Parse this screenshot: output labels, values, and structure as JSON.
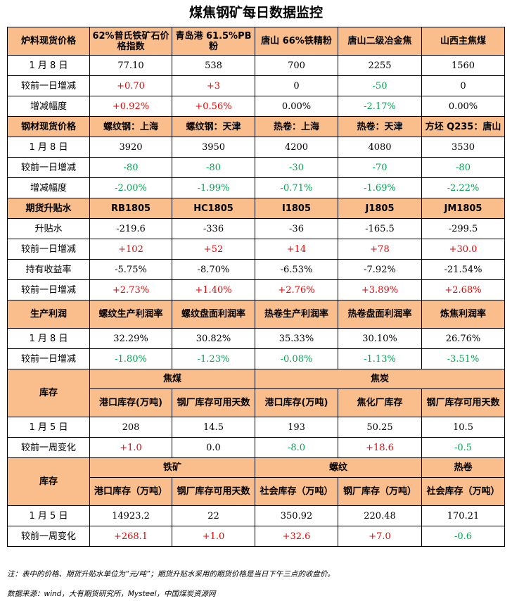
{
  "title": "煤焦钢矿每日数据监控",
  "colors": {
    "header_bg": "#f9be8c",
    "up": "#ee0000",
    "down": "#00a651"
  },
  "raw": {
    "header": [
      "炉料现货价格",
      "62%普氏铁矿石价格指数",
      "青岛港 61.5%PB粉",
      "唐山 66%铁精粉",
      "唐山二级冶金焦",
      "山西主焦煤"
    ],
    "rows": [
      [
        "1 月 8 日",
        "77.10",
        "538",
        "700",
        "2255",
        "1560"
      ],
      [
        "较前一日增减",
        "+0.70",
        "+3",
        "0",
        "-50",
        "0"
      ],
      [
        "增减幅度",
        "+0.92%",
        "+0.56%",
        "0.00%",
        "-2.17%",
        "0.00%"
      ]
    ]
  },
  "steel": {
    "header": [
      "钢材现货价格",
      "螺纹钢：上海",
      "螺纹钢：天津",
      "热卷：上海",
      "热卷：天津",
      "方坯 Q235：唐山"
    ],
    "rows": [
      [
        "1 月 8 日",
        "3920",
        "3950",
        "4200",
        "4080",
        "3530"
      ],
      [
        "较前一日增减",
        "-80",
        "-80",
        "-30",
        "-70",
        "-80"
      ],
      [
        "增减幅度",
        "-2.00%",
        "-1.99%",
        "-0.71%",
        "-1.69%",
        "-2.22%"
      ]
    ]
  },
  "futures": {
    "header": [
      "期货升贴水",
      "RB1805",
      "HC1805",
      "I1805",
      "J1805",
      "JM1805"
    ],
    "rows": [
      [
        "升贴水",
        "-219.6",
        "-336",
        "-36",
        "-165.5",
        "-299.5"
      ],
      [
        "较前一日增减",
        "+102",
        "+52",
        "+14",
        "+78",
        "+30.0"
      ],
      [
        "持有收益率",
        "-5.75%",
        "-8.70%",
        "-6.53%",
        "-7.92%",
        "-21.54%"
      ],
      [
        "较前一日增减",
        "+2.73%",
        "+1.40%",
        "+2.76%",
        "+3.89%",
        "+2.68%"
      ]
    ]
  },
  "profit": {
    "header": [
      "生产利润",
      "螺纹生产利润率",
      "螺纹盘面利润率",
      "热卷生产利润率",
      "热卷盘面利润率",
      "炼焦利润率"
    ],
    "rows": [
      [
        "1 月 8 日",
        "32.29%",
        "30.82%",
        "35.33%",
        "30.10%",
        "26.76%"
      ],
      [
        "较前一日增减",
        "-1.80%",
        "-1.23%",
        "-0.08%",
        "-1.13%",
        "-3.51%"
      ]
    ]
  },
  "inv1": {
    "label": "库存",
    "groups": [
      "焦煤",
      "焦炭"
    ],
    "sub": [
      "港口库存(万吨)",
      "钢厂库存可用天数",
      "港口库存(万吨)",
      "焦化厂库存",
      "钢厂库存可用天数"
    ],
    "rows": [
      [
        "1 月 5 日",
        "208",
        "14.5",
        "193",
        "50.25",
        "10.5"
      ],
      [
        "较前一周变化",
        "+1.0",
        "0.0",
        "-8.0",
        "+18.6",
        "-0.5"
      ]
    ]
  },
  "inv2": {
    "label": "库存",
    "groups": [
      "铁矿",
      "螺纹",
      "热卷"
    ],
    "sub": [
      "港口库存（万吨）",
      "钢厂库存可用天数",
      "社会库存（万吨）",
      "钢厂库存（万吨）",
      "社会库存（万吨）"
    ],
    "rows": [
      [
        "1 月 5 日",
        "14923.2",
        "22",
        "350.92",
        "220.48",
        "170.21"
      ],
      [
        "较前一周变化",
        "+268.1",
        "+1.0",
        "+32.6",
        "+7.0",
        "-0.6"
      ]
    ]
  },
  "notes": {
    "note1": "注：表中的价格、期货升贴水单位为“元/吨”；期货升贴水采用的期货价格是当日下午三点的收盘价。",
    "note2": "数据来源：wind，大有期货研究所，Mysteel，中国煤炭资源网"
  }
}
